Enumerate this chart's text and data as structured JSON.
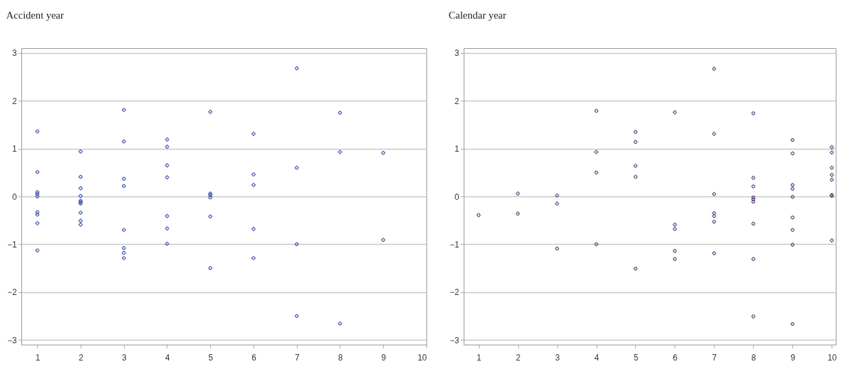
{
  "chart_data": [
    {
      "type": "scatter",
      "title": "Accident year",
      "color": "#3b4fb0",
      "marker": "cross",
      "grid": "y",
      "xlim": [
        0.63,
        10
      ],
      "xticks": [
        1,
        2,
        3,
        4,
        5,
        6,
        7,
        8,
        9,
        10
      ],
      "ylim": [
        -3.1,
        3.1
      ],
      "yticks": [
        -3,
        -2,
        -1,
        0,
        1,
        2,
        3
      ],
      "x": [
        1,
        1,
        1,
        1,
        1,
        1,
        1,
        1,
        1,
        2,
        2,
        2,
        2,
        2,
        2,
        2,
        2,
        2,
        2,
        3,
        3,
        3,
        3,
        3,
        3,
        3,
        3,
        4,
        4,
        4,
        4,
        4,
        4,
        4,
        5,
        5,
        5,
        5,
        5,
        5,
        6,
        6,
        6,
        6,
        6,
        7,
        7,
        7,
        7,
        8,
        8,
        8,
        9,
        9
      ],
      "values": [
        1.36,
        0.51,
        0.09,
        0.05,
        0,
        -0.33,
        -0.38,
        -0.56,
        -1.13,
        0.94,
        0.41,
        0.17,
        0.01,
        -0.09,
        -0.12,
        -0.15,
        -0.34,
        -0.51,
        -0.59,
        1.81,
        1.15,
        0.37,
        0.22,
        -0.7,
        -1.08,
        -1.18,
        -1.29,
        1.19,
        1.04,
        0.65,
        0.4,
        -0.41,
        -0.67,
        -0.99,
        1.77,
        0.06,
        0.03,
        -0.02,
        -0.42,
        -1.5,
        1.31,
        0.46,
        0.24,
        -0.68,
        -1.29,
        2.68,
        0.6,
        -1,
        -2.5,
        1.75,
        0.93,
        -2.66,
        0.91,
        -0.91
      ]
    },
    {
      "type": "scatter",
      "title": "Calendar year",
      "color": "#5a3f7a",
      "marker": "cross",
      "grid": "y",
      "xlim": [
        0.62,
        10.1
      ],
      "xticks": [
        1,
        2,
        3,
        4,
        5,
        6,
        7,
        8,
        9,
        10
      ],
      "ylim": [
        -3.1,
        3.1
      ],
      "yticks": [
        -3,
        -2,
        -1,
        0,
        1,
        2,
        3
      ],
      "x": [
        1,
        2,
        2,
        3,
        3,
        3,
        4,
        4,
        4,
        4,
        5,
        5,
        5,
        5,
        5,
        6,
        6,
        6,
        6,
        6,
        7,
        7,
        7,
        7,
        7,
        7,
        7,
        8,
        8,
        8,
        8,
        8,
        8,
        8,
        8,
        8,
        9,
        9,
        9,
        9,
        9,
        9,
        9,
        9,
        9,
        10,
        10,
        10,
        10,
        10,
        10,
        10,
        10
      ],
      "values": [
        -0.39,
        0.06,
        -0.36,
        0.02,
        -0.15,
        -1.09,
        1.79,
        0.93,
        0.5,
        -1,
        1.35,
        1.14,
        0.64,
        0.41,
        -1.51,
        1.76,
        -0.59,
        -0.68,
        -1.14,
        -1.31,
        2.67,
        1.31,
        0.05,
        -0.35,
        -0.41,
        -0.53,
        -1.19,
        1.74,
        0.39,
        0.21,
        -0.02,
        -0.06,
        -0.11,
        -0.57,
        -1.31,
        -2.51,
        1.18,
        0.9,
        0.24,
        0.16,
        -0.01,
        -0.44,
        -0.7,
        -1.01,
        -2.67,
        1.03,
        0.92,
        0.6,
        0.45,
        0.35,
        0.03,
        0.01,
        -0.92
      ]
    }
  ]
}
